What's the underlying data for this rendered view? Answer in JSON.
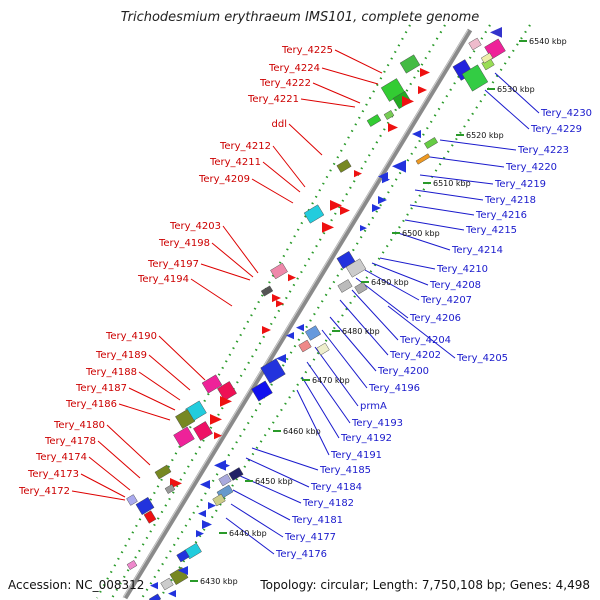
{
  "title": "Trichodesmium erythraeum IMS101, complete genome",
  "footer": {
    "accession": "Accession: NC_008312",
    "topology": "Topology: circular; Length: 7,750,108 bp; Genes: 4,498"
  },
  "colors": {
    "left_labels": "#cc0000",
    "right_labels": "#1a1acc",
    "backbone": "#8a8a8a",
    "dots": "#2a9a2a"
  },
  "ticks": [
    "6540 kbp",
    "6530 kbp",
    "6520 kbp",
    "6510 kbp",
    "6500 kbp",
    "6490 kbp",
    "6480 kbp",
    "6470 kbp",
    "6460 kbp",
    "6450 kbp",
    "6440 kbp",
    "6430 kbp"
  ],
  "left_genes": [
    "Tery_4225",
    "Tery_4224",
    "Tery_4222",
    "Tery_4221",
    "ddl",
    "Tery_4212",
    "Tery_4211",
    "Tery_4209",
    "Tery_4203",
    "Tery_4198",
    "Tery_4197",
    "Tery_4194",
    "Tery_4190",
    "Tery_4189",
    "Tery_4188",
    "Tery_4187",
    "Tery_4186",
    "Tery_4180",
    "Tery_4178",
    "Tery_4174",
    "Tery_4173",
    "Tery_4172"
  ],
  "right_genes": [
    "Tery_4230",
    "Tery_4229",
    "Tery_4223",
    "Tery_4220",
    "Tery_4219",
    "Tery_4218",
    "Tery_4216",
    "Tery_4215",
    "Tery_4214",
    "Tery_4210",
    "Tery_4208",
    "Tery_4207",
    "Tery_4206",
    "Tery_4204",
    "Tery_4202",
    "Tery_4205",
    "Tery_4200",
    "Tery_4196",
    "prmA",
    "Tery_4193",
    "Tery_4192",
    "Tery_4191",
    "Tery_4185",
    "Tery_4184",
    "Tery_4182",
    "Tery_4181",
    "Tery_4177",
    "Tery_4176"
  ]
}
